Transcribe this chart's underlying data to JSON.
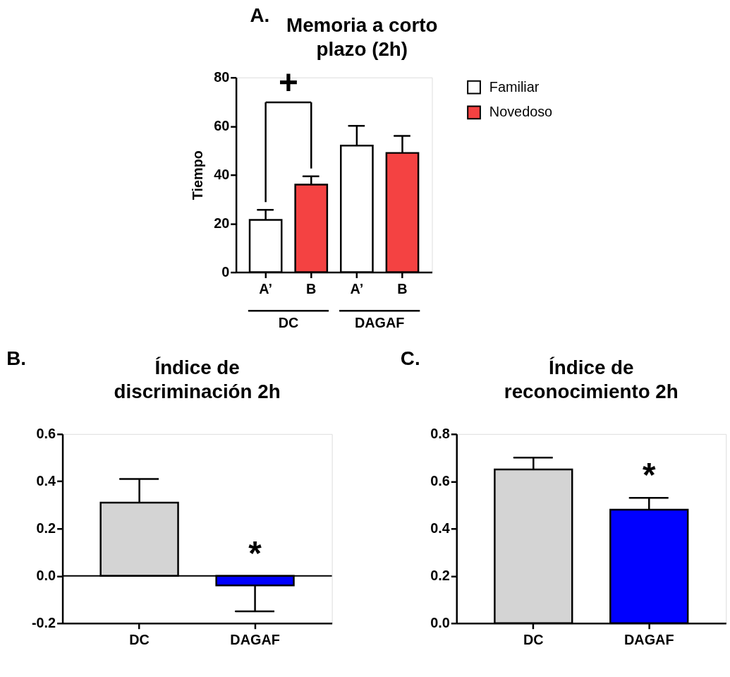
{
  "chart_data": [
    {
      "type": "bar",
      "title": "Memoria a corto plazo (2h)",
      "ylabel": "Tiempo",
      "categories": [
        "A’",
        "B",
        "A’",
        "B"
      ],
      "series": [
        {
          "name": "Familiar",
          "color": "#ffffff",
          "values": [
            21.5,
            null,
            52,
            null
          ],
          "errors": [
            4.1,
            null,
            8.1,
            null
          ]
        },
        {
          "name": "Novedoso",
          "color": "#f44242",
          "values": [
            null,
            36,
            null,
            49
          ],
          "errors": [
            null,
            3.4,
            null,
            7
          ]
        }
      ],
      "ylim": [
        0,
        80
      ],
      "yticks": [
        0,
        20,
        40,
        60,
        80
      ],
      "grid": false,
      "legend": "top right",
      "annotations": [
        "A.",
        "+",
        "DC",
        "DAGAF"
      ]
    },
    {
      "type": "bar",
      "title": "Índice de discriminación 2h",
      "categories": [
        "DC",
        "DAGAF"
      ],
      "series": [
        {
          "values": [
            0.31,
            -0.04
          ],
          "colors": [
            "#d4d4d4",
            "#0000ff"
          ],
          "errors": [
            0.1,
            0.11
          ]
        }
      ],
      "ylim": [
        -0.2,
        0.6
      ],
      "yticks": [
        -0.2,
        {
          "value": 0,
          "label": "0.0"
        },
        0.2,
        0.4,
        0.6
      ],
      "grid": false,
      "legend": false,
      "ref_lines": [
        {
          "axis": "y",
          "value": 0
        }
      ],
      "annotations": [
        "B.",
        "*"
      ]
    },
    {
      "type": "bar",
      "title": "Índice de reconocimiento 2h",
      "categories": [
        "DC",
        "DAGAF"
      ],
      "series": [
        {
          "values": [
            0.65,
            0.48
          ],
          "colors": [
            "#d4d4d4",
            "#0000ff"
          ],
          "errors": [
            0.05,
            0.05
          ]
        }
      ],
      "ylim": [
        0,
        0.8
      ],
      "yticks": [
        {
          "value": 0,
          "label": "0.0"
        },
        0.2,
        0.4,
        0.6,
        0.8
      ],
      "grid": false,
      "legend": false,
      "annotations": [
        "C.",
        "*"
      ]
    }
  ]
}
